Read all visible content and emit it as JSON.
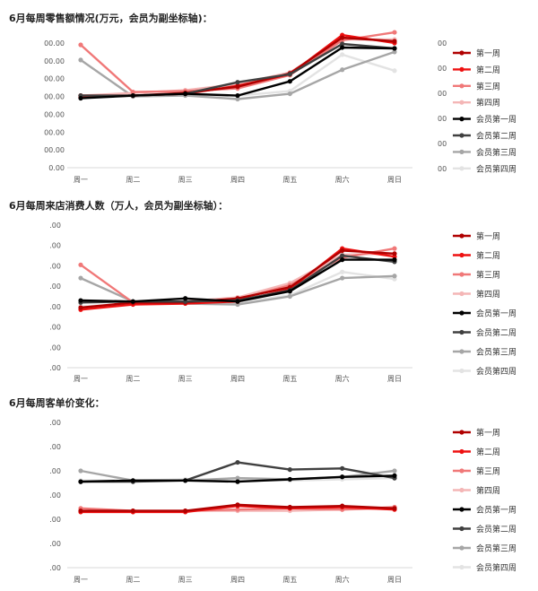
{
  "colors": {
    "w1": "#b00000",
    "w2": "#ee1111",
    "w3": "#f07878",
    "w4": "#f4b6b6",
    "m1": "#000000",
    "m2": "#404040",
    "m3": "#a6a6a6",
    "m4": "#e3e3e3",
    "axis_text": "#555555",
    "grid": "#e8e8e8"
  },
  "legend": [
    "第一周",
    "第二周",
    "第三周",
    "第四周",
    "会员第一周",
    "会员第二周",
    "会员第三周",
    "会员第四周"
  ],
  "chart_data": [
    {
      "type": "line",
      "title": "6月每周零售额情况(万元，会员为副坐标轴)：",
      "categories": [
        "周一",
        "周二",
        "周三",
        "周四",
        "周五",
        "周六",
        "周日"
      ],
      "y_ticks": [
        "00.00",
        "00.00",
        "00.00",
        "00.00",
        "00.00",
        "00.00",
        "00.00",
        "0.00"
      ],
      "y2_ticks": [
        "00",
        "00",
        "00",
        "00",
        "00",
        "00"
      ],
      "ylim": [
        0,
        7
      ],
      "grid": false,
      "legend_position": "right",
      "series": [
        {
          "name": "第一周",
          "values": [
            4.05,
            4.05,
            4.2,
            4.55,
            5.3,
            7.3,
            7.1
          ]
        },
        {
          "name": "第二周",
          "values": [
            3.95,
            4.05,
            4.15,
            4.6,
            5.25,
            7.45,
            7.0
          ]
        },
        {
          "name": "第三周",
          "values": [
            6.9,
            4.25,
            4.3,
            4.45,
            5.2,
            7.15,
            7.6
          ]
        },
        {
          "name": "第四周",
          "values": [
            4.05,
            4.2,
            4.35,
            4.7,
            5.35,
            7.2,
            7.2
          ]
        },
        {
          "name": "会员第一周",
          "values": [
            3.9,
            4.05,
            4.15,
            4.05,
            4.85,
            6.75,
            6.7
          ]
        },
        {
          "name": "会员第二周",
          "values": [
            4.05,
            4.05,
            4.15,
            4.8,
            5.25,
            6.95,
            6.7
          ]
        },
        {
          "name": "会员第三周",
          "values": [
            6.05,
            4.0,
            4.05,
            3.85,
            4.15,
            5.5,
            6.5
          ]
        },
        {
          "name": "会员第四周",
          "values": [
            3.95,
            4.0,
            4.1,
            4.05,
            4.3,
            6.35,
            5.45
          ]
        }
      ]
    },
    {
      "type": "line",
      "title": "6月每周来店消费人数（万人，会员为副坐标轴）：",
      "categories": [
        "周一",
        "周二",
        "周三",
        "周四",
        "周五",
        "周六",
        "周日"
      ],
      "y_ticks": [
        ".00",
        ".00",
        ".00",
        ".00",
        ".00",
        ".00",
        ".00",
        ".00"
      ],
      "ylim": [
        0,
        7
      ],
      "grid": false,
      "legend_position": "right",
      "series": [
        {
          "name": "第一周",
          "values": [
            2.95,
            3.2,
            3.2,
            3.4,
            3.95,
            5.75,
            5.6
          ]
        },
        {
          "name": "第二周",
          "values": [
            2.85,
            3.1,
            3.15,
            3.25,
            3.85,
            5.85,
            5.45
          ]
        },
        {
          "name": "第三周",
          "values": [
            5.05,
            3.2,
            3.2,
            3.35,
            4.05,
            5.4,
            5.85
          ]
        },
        {
          "name": "第四周",
          "values": [
            2.95,
            3.15,
            3.25,
            3.45,
            4.15,
            5.55,
            5.6
          ]
        },
        {
          "name": "会员第一周",
          "values": [
            3.3,
            3.25,
            3.4,
            3.25,
            3.75,
            5.3,
            5.3
          ]
        },
        {
          "name": "会员第二周",
          "values": [
            3.2,
            3.25,
            3.25,
            3.3,
            3.8,
            5.5,
            5.2
          ]
        },
        {
          "name": "会员第三周",
          "values": [
            4.4,
            3.25,
            3.15,
            3.1,
            3.5,
            4.4,
            4.5
          ]
        },
        {
          "name": "会员第四周",
          "values": [
            3.0,
            3.15,
            3.2,
            3.2,
            3.55,
            4.7,
            4.35
          ]
        }
      ]
    },
    {
      "type": "line",
      "title": "6月每周客单价变化：",
      "categories": [
        "周一",
        "周二",
        "周三",
        "周四",
        "周五",
        "周六",
        "周日"
      ],
      "y_ticks": [
        ".00",
        ".00",
        ".00",
        ".00",
        ".00",
        ".00",
        ".00"
      ],
      "ylim": [
        0,
        6
      ],
      "grid": false,
      "legend_position": "right",
      "series": [
        {
          "name": "第一周",
          "values": [
            2.35,
            2.35,
            2.35,
            2.6,
            2.5,
            2.55,
            2.45
          ]
        },
        {
          "name": "第二周",
          "values": [
            2.3,
            2.3,
            2.3,
            2.55,
            2.45,
            2.5,
            2.4
          ]
        },
        {
          "name": "第三周",
          "values": [
            2.45,
            2.35,
            2.35,
            2.4,
            2.45,
            2.4,
            2.5
          ]
        },
        {
          "name": "第四周",
          "values": [
            2.35,
            2.3,
            2.35,
            2.35,
            2.35,
            2.4,
            2.45
          ]
        },
        {
          "name": "会员第一周",
          "values": [
            3.55,
            3.6,
            3.6,
            3.55,
            3.65,
            3.75,
            3.8
          ]
        },
        {
          "name": "会员第二周",
          "values": [
            3.55,
            3.55,
            3.6,
            4.35,
            4.05,
            4.1,
            3.7
          ]
        },
        {
          "name": "会员第三周",
          "values": [
            4.0,
            3.6,
            3.6,
            3.7,
            3.65,
            3.75,
            4.0
          ]
        },
        {
          "name": "会员第四周",
          "values": [
            3.6,
            3.6,
            3.65,
            3.6,
            3.6,
            3.65,
            3.7
          ]
        }
      ]
    }
  ]
}
